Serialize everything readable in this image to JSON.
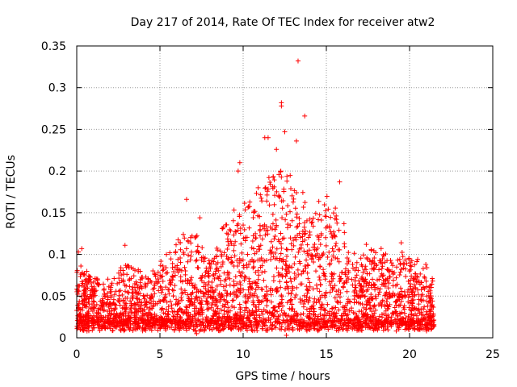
{
  "chart_data": {
    "type": "scatter",
    "title": "Day 217 of 2014, Rate Of TEC Index for receiver atw2",
    "xlabel": "GPS time / hours",
    "ylabel": "ROTI / TECUs",
    "xlim": [
      0,
      25
    ],
    "ylim": [
      0,
      0.35
    ],
    "x_ticks": [
      "0",
      "5",
      "10",
      "15",
      "20",
      "25"
    ],
    "y_ticks": [
      "0",
      "0.05",
      "0.1",
      "0.15",
      "0.2",
      "0.25",
      "0.3",
      "0.35"
    ],
    "grid": true,
    "marker": "+",
    "colors": {
      "series": "#ff0000",
      "grid": "#9a9a9a",
      "axis": "#000000"
    },
    "series": [
      {
        "name": "ROTI",
        "envelope_x": [
          0,
          1,
          2,
          3,
          4,
          5,
          6,
          7,
          8,
          9,
          10,
          11,
          12,
          13,
          14,
          15,
          16,
          17,
          18,
          19,
          20,
          21,
          21.5
        ],
        "envelope_y": [
          0.08,
          0.07,
          0.06,
          0.09,
          0.07,
          0.08,
          0.11,
          0.12,
          0.09,
          0.14,
          0.15,
          0.17,
          0.2,
          0.19,
          0.16,
          0.17,
          0.13,
          0.09,
          0.1,
          0.09,
          0.1,
          0.08,
          0.06
        ],
        "highlights": [
          {
            "x": 13.3,
            "y": 0.332
          },
          {
            "x": 13.7,
            "y": 0.266
          },
          {
            "x": 12.3,
            "y": 0.282
          },
          {
            "x": 12.3,
            "y": 0.278
          },
          {
            "x": 12.5,
            "y": 0.247
          },
          {
            "x": 13.2,
            "y": 0.236
          },
          {
            "x": 11.5,
            "y": 0.24
          },
          {
            "x": 11.3,
            "y": 0.24
          },
          {
            "x": 12.0,
            "y": 0.226
          },
          {
            "x": 9.8,
            "y": 0.21
          },
          {
            "x": 9.7,
            "y": 0.2
          },
          {
            "x": 15.8,
            "y": 0.187
          },
          {
            "x": 10.9,
            "y": 0.18
          },
          {
            "x": 6.6,
            "y": 0.166
          },
          {
            "x": 7.4,
            "y": 0.144
          },
          {
            "x": 2.9,
            "y": 0.111
          },
          {
            "x": 0.3,
            "y": 0.107
          },
          {
            "x": 0.1,
            "y": 0.103
          },
          {
            "x": 17.4,
            "y": 0.112
          },
          {
            "x": 19.5,
            "y": 0.114
          },
          {
            "x": 7.2,
            "y": 0.005
          },
          {
            "x": 12.6,
            "y": 0.003
          }
        ]
      }
    ]
  }
}
